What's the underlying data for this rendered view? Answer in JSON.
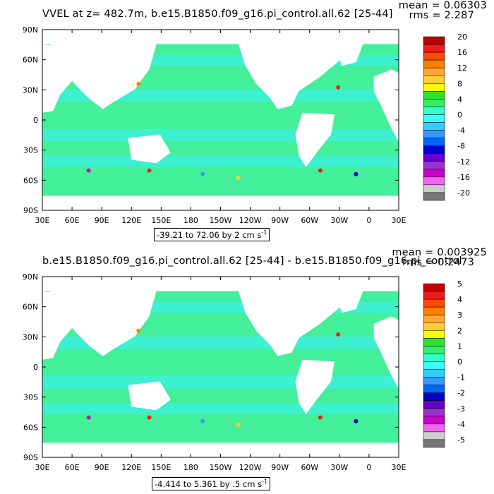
{
  "chart_data": [
    {
      "type": "heatmap",
      "title": "VVEL at z= 482.7m, b.e15.B1850.f09_g16.pi_control.all.62 [25-44]",
      "stat_mean": "mean = 0.06303",
      "stat_rms": "rms = 2.287",
      "range_label": "-39.21 to 72.06 by 2 cm s",
      "range_unit_exp": "-1",
      "x_ticks": [
        "30E",
        "60E",
        "90E",
        "120E",
        "150E",
        "180",
        "150W",
        "120W",
        "90W",
        "60W",
        "30W",
        "0",
        "30E"
      ],
      "y_ticks": [
        "90N",
        "60N",
        "30N",
        "0",
        "30S",
        "60S",
        "90S"
      ],
      "colorbar_labels": [
        "20",
        "16",
        "12",
        "8",
        "4",
        "0",
        "-4",
        "-8",
        "-12",
        "-16",
        "-20"
      ],
      "colorbar_colors": [
        "#c00000",
        "#ee1c1c",
        "#ff4a00",
        "#ff7f00",
        "#ffa533",
        "#ffcc33",
        "#ffff00",
        "#2fdf2f",
        "#33ee66",
        "#33ffcc",
        "#33ffff",
        "#33ccff",
        "#3399ff",
        "#0066ff",
        "#0000cc",
        "#6600cc",
        "#9933cc",
        "#cc00cc",
        "#ee66ee",
        "#cccccc",
        "#777777"
      ],
      "ocean_color": "#44ef9a",
      "alt_color": "#3cf0d8"
    },
    {
      "type": "heatmap",
      "title": "b.e15.B1850.f09_g16.pi_control.all.62 [25-44] - b.e15.B1850.f09_g16.pi_control",
      "stat_mean": "mean = 0.003925",
      "stat_rms": "rms = 0.2473",
      "range_label": "-4.414 to 5.361 by .5 cm s",
      "range_unit_exp": "-1",
      "x_ticks": [
        "30E",
        "60E",
        "90E",
        "120E",
        "150E",
        "180",
        "150W",
        "120W",
        "90W",
        "60W",
        "30W",
        "0",
        "30E"
      ],
      "y_ticks": [
        "90N",
        "60N",
        "30N",
        "0",
        "30S",
        "60S",
        "90S"
      ],
      "colorbar_labels": [
        "5",
        "4",
        "3",
        "2",
        "1",
        "0",
        "-1",
        "-2",
        "-3",
        "-4",
        "-5"
      ],
      "colorbar_colors": [
        "#c00000",
        "#ee1c1c",
        "#ff4a00",
        "#ff7f00",
        "#ffa533",
        "#ffcc33",
        "#ffff00",
        "#2fdf2f",
        "#33ee66",
        "#33ffcc",
        "#33ffff",
        "#33ccff",
        "#3399ff",
        "#0066ff",
        "#0000cc",
        "#6600cc",
        "#9933cc",
        "#cc00cc",
        "#ee66ee",
        "#cccccc",
        "#777777"
      ],
      "ocean_color": "#44ef9a",
      "alt_color": "#3cf0d8"
    }
  ]
}
